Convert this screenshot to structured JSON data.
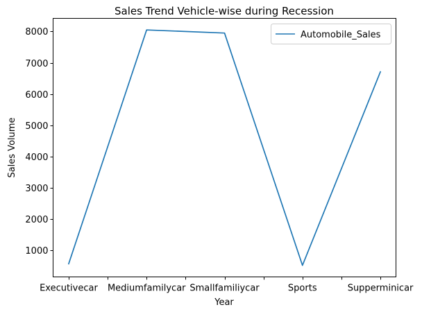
{
  "chart_data": {
    "type": "line",
    "title": "Sales Trend Vehicle-wise during Recession",
    "xlabel": "Year",
    "ylabel": "Sales Volume",
    "x_tick_labels": [
      "Executivecar",
      "Mediumfamilycar",
      "Smallfamiliycar",
      "Sports",
      "Supperminicar"
    ],
    "x_tick_positions": [
      0,
      1,
      2,
      3,
      4
    ],
    "categories": [
      "Executivecar",
      "Mediumfamilycar",
      "Smallfamiliycar",
      "Sports",
      "Supperminicar"
    ],
    "series": [
      {
        "name": "Automobile_Sales",
        "color": "#1f77b4",
        "values": [
          570,
          8050,
          7950,
          520,
          6710
        ]
      }
    ],
    "xlim": [
      -0.2,
      4.2
    ],
    "ylim": [
      150,
      8420
    ],
    "yticks": [
      1000,
      2000,
      3000,
      4000,
      5000,
      6000,
      7000,
      8000
    ],
    "grid": false,
    "legend_position": "upper right"
  }
}
